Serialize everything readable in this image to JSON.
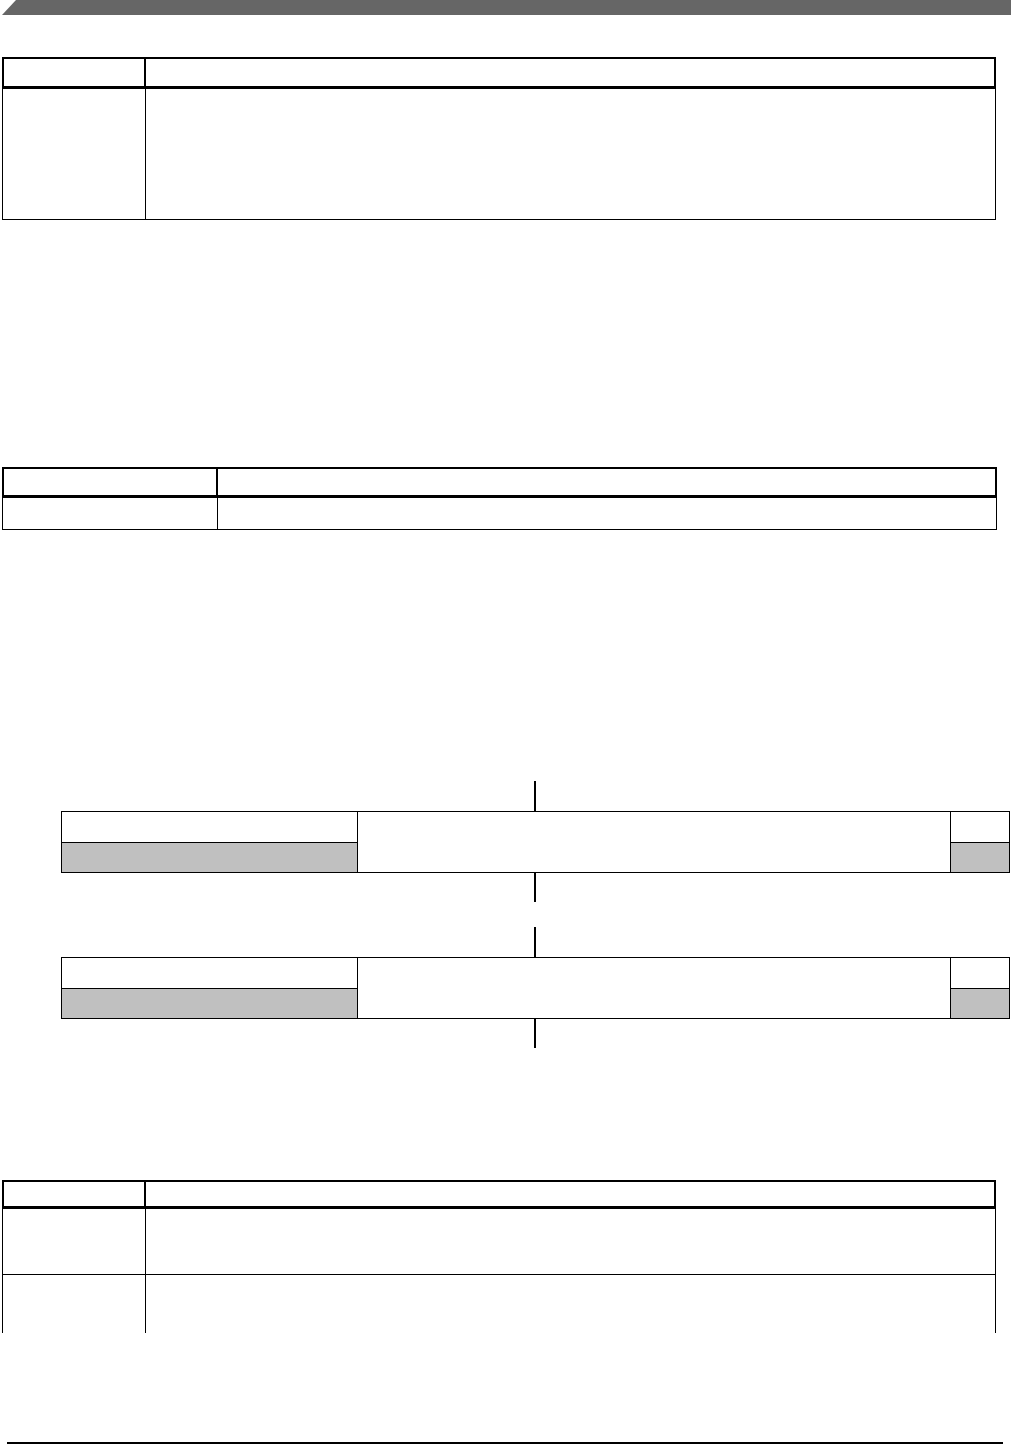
{
  "page": {
    "background_color": "#ffffff",
    "border_color": "#000000"
  },
  "header_band": {
    "color": "#666666",
    "text": ""
  },
  "top_table": {
    "header_cells": [
      "",
      ""
    ],
    "rows": [
      [
        "",
        ""
      ]
    ]
  },
  "middle_table": {
    "header_cells": [
      "",
      ""
    ],
    "rows": [
      [
        "",
        ""
      ]
    ]
  },
  "register_diagrams": [
    {
      "shaded_color": "#c0c0c0",
      "left_top": "",
      "left_bottom": "",
      "middle": "",
      "right_top": "",
      "right_bottom": ""
    },
    {
      "shaded_color": "#c0c0c0",
      "left_top": "",
      "left_bottom": "",
      "middle": "",
      "right_top": "",
      "right_bottom": ""
    }
  ],
  "bottom_table": {
    "header_cells": [
      "",
      ""
    ],
    "rows": [
      [
        "",
        ""
      ],
      [
        "",
        ""
      ]
    ]
  },
  "footer": {
    "rule_color": "#000000"
  }
}
